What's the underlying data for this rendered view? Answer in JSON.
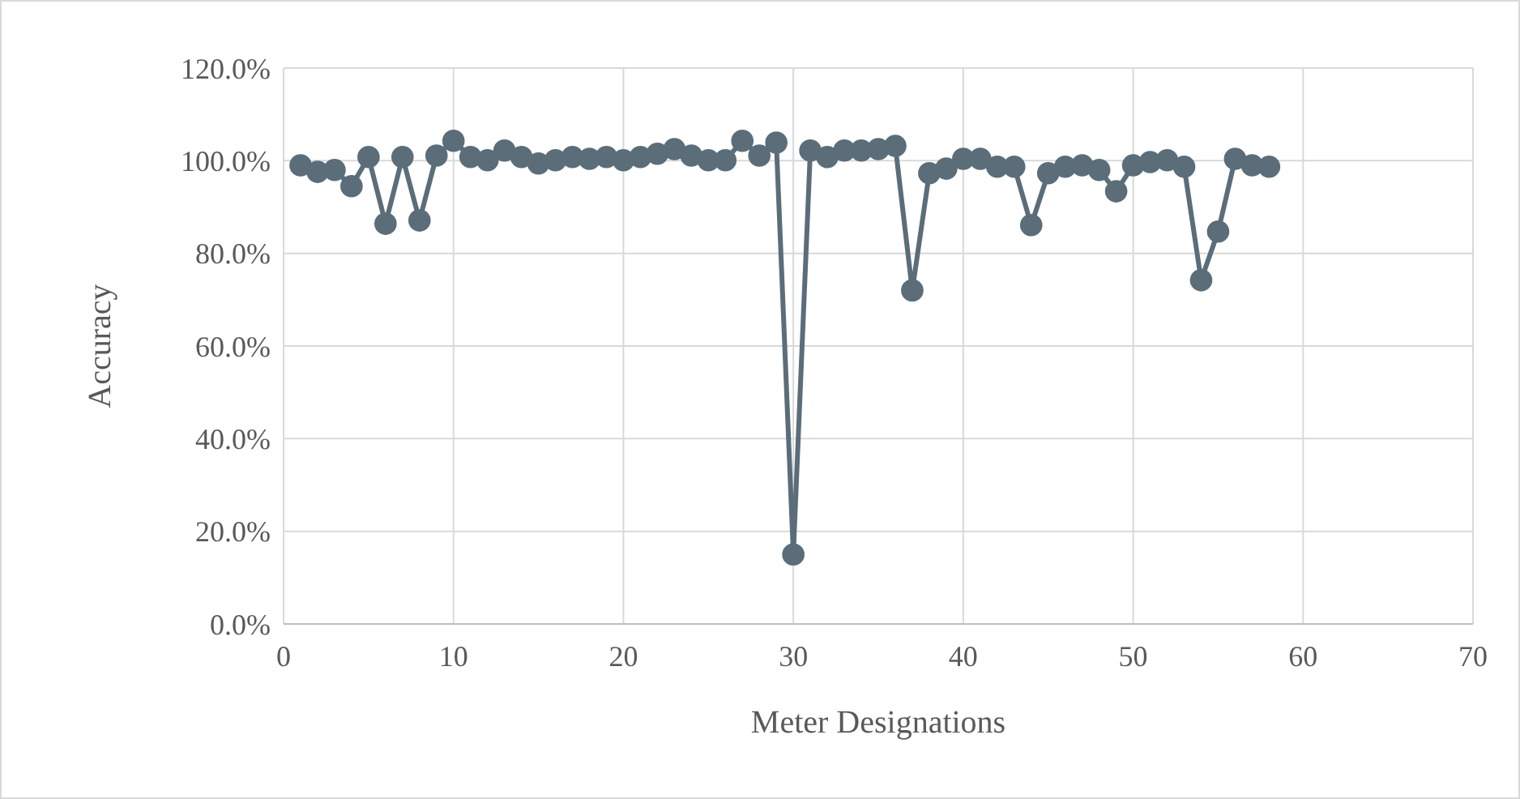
{
  "chart_data": {
    "type": "line",
    "xlabel": "Meter Designations",
    "ylabel": "Accuracy",
    "x": [
      1,
      2,
      3,
      4,
      5,
      6,
      7,
      8,
      9,
      10,
      11,
      12,
      13,
      14,
      15,
      16,
      17,
      18,
      19,
      20,
      21,
      22,
      23,
      24,
      25,
      26,
      27,
      28,
      29,
      30,
      31,
      32,
      33,
      34,
      35,
      36,
      37,
      38,
      39,
      40,
      41,
      42,
      43,
      44,
      45,
      46,
      47,
      48,
      49,
      50,
      51,
      52,
      53,
      54,
      55,
      56,
      57,
      58
    ],
    "series": [
      {
        "color": "#5b6d79",
        "values": [
          99.0,
          97.6,
          98.0,
          94.5,
          100.8,
          86.4,
          100.8,
          87.1,
          101.1,
          104.3,
          100.8,
          100.1,
          102.2,
          100.8,
          99.4,
          100.1,
          100.8,
          100.4,
          100.8,
          100.1,
          100.8,
          101.5,
          102.5,
          101.1,
          100.1,
          100.1,
          104.3,
          101.1,
          103.9,
          15.0,
          102.2,
          100.8,
          102.2,
          102.2,
          102.5,
          103.2,
          72.0,
          97.3,
          98.3,
          100.4,
          100.4,
          98.7,
          98.7,
          86.1,
          97.3,
          98.7,
          99.0,
          98.0,
          93.4,
          99.0,
          99.7,
          100.1,
          98.7,
          74.2,
          84.7,
          100.4,
          99.0,
          98.7
        ]
      }
    ],
    "xlim": [
      0,
      70
    ],
    "xticks": [
      0,
      10,
      20,
      30,
      40,
      50,
      60,
      70
    ],
    "ylim": [
      0,
      120
    ],
    "yticks": [
      {
        "value": 0,
        "label": "0.0%"
      },
      {
        "value": 20,
        "label": "20.0%"
      },
      {
        "value": 40,
        "label": "40.0%"
      },
      {
        "value": 60,
        "label": "60.0%"
      },
      {
        "value": 80,
        "label": "80.0%"
      },
      {
        "value": 100,
        "label": "100.0%"
      },
      {
        "value": 120,
        "label": "120.0%"
      }
    ],
    "grid": true,
    "marker": "circle",
    "line_style": "solid"
  }
}
